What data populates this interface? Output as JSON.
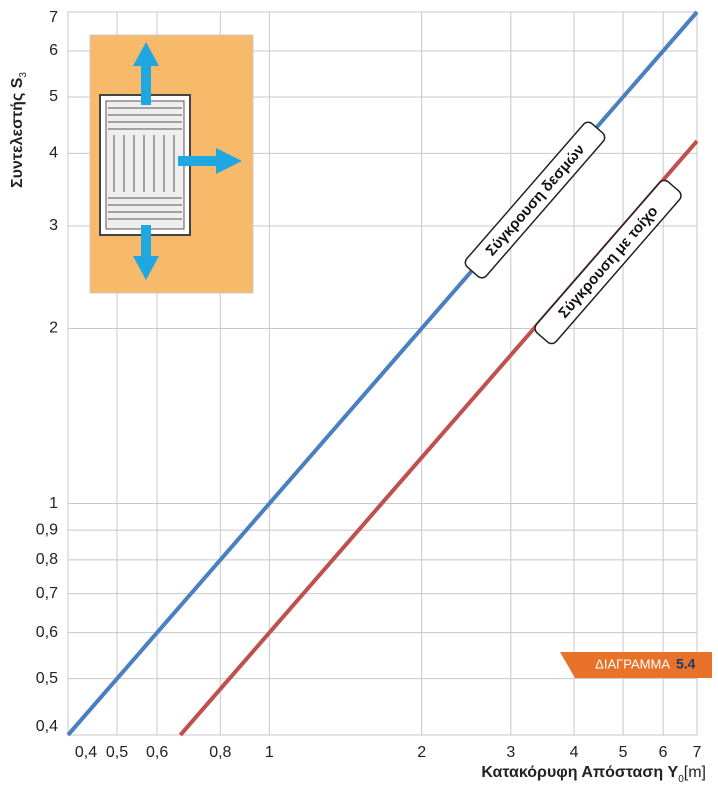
{
  "chart_data": {
    "type": "line",
    "log_x": true,
    "log_y": true,
    "grid": true,
    "x_label": {
      "text": "Κατακόρυφη Απόσταση Y",
      "sub": "0",
      "unit": "[m]"
    },
    "y_label": {
      "text": "Συντελεστής S",
      "sub": "3"
    },
    "badge": {
      "text": "ΔΙΑΓΡΑΜΜΑ",
      "number": "5.4"
    },
    "xlim": [
      0.4,
      7
    ],
    "ylim": [
      0.4,
      7
    ],
    "xticks": [
      {
        "value": 0.4,
        "label": "0,4"
      },
      {
        "value": 0.5,
        "label": "0,5"
      },
      {
        "value": 0.6,
        "label": "0,6"
      },
      {
        "value": 0.8,
        "label": "0,8"
      },
      1,
      2,
      3,
      4,
      5,
      6,
      7
    ],
    "yticks": [
      {
        "value": 0.4,
        "label": "0,4"
      },
      {
        "value": 0.5,
        "label": "0,5"
      },
      {
        "value": 0.6,
        "label": "0,6"
      },
      {
        "value": 0.7,
        "label": "0,7"
      },
      {
        "value": 0.8,
        "label": "0,8"
      },
      {
        "value": 0.9,
        "label": "0,9"
      },
      1,
      2,
      3,
      4,
      5,
      6,
      7
    ],
    "series": [
      {
        "name": "Σύγκρουση δεσμών",
        "color": "#4a7fc1",
        "x": [
          0.4,
          7
        ],
        "values": [
          0.4,
          7
        ]
      },
      {
        "name": "Σύγκρουση με τοίχο",
        "color": "#c0504d",
        "x": [
          0.667,
          7
        ],
        "values": [
          0.4,
          4.2
        ]
      }
    ]
  }
}
